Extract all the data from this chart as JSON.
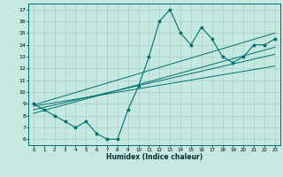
{
  "xlabel": "Humidex (Indice chaleur)",
  "ylabel": "",
  "bg_color": "#c5e8e0",
  "grid_color": "#a8cfc8",
  "line_color": "#007070",
  "xlim": [
    -0.5,
    23.5
  ],
  "ylim": [
    5.5,
    17.5
  ],
  "xticks": [
    0,
    1,
    2,
    3,
    4,
    5,
    6,
    7,
    8,
    9,
    10,
    11,
    12,
    13,
    14,
    15,
    16,
    17,
    18,
    19,
    20,
    21,
    22,
    23
  ],
  "yticks": [
    6,
    7,
    8,
    9,
    10,
    11,
    12,
    13,
    14,
    15,
    16,
    17
  ],
  "scatter_x": [
    0,
    1,
    2,
    3,
    4,
    5,
    6,
    7,
    8,
    9,
    10,
    11,
    12,
    13,
    14,
    15,
    16,
    17,
    18,
    19,
    20,
    21,
    22,
    23
  ],
  "scatter_y": [
    9,
    8.5,
    8,
    7.5,
    7,
    7.5,
    6.5,
    6,
    6,
    8.5,
    10.5,
    13,
    16,
    17,
    15,
    14,
    15.5,
    14.5,
    13,
    12.5,
    13,
    14,
    14,
    14.5
  ],
  "reg_lines": [
    {
      "x": [
        0,
        23
      ],
      "y": [
        8.8,
        12.2
      ]
    },
    {
      "x": [
        0,
        23
      ],
      "y": [
        8.5,
        13.2
      ]
    },
    {
      "x": [
        0,
        23
      ],
      "y": [
        8.2,
        13.8
      ]
    },
    {
      "x": [
        0,
        23
      ],
      "y": [
        8.9,
        15.0
      ]
    }
  ]
}
